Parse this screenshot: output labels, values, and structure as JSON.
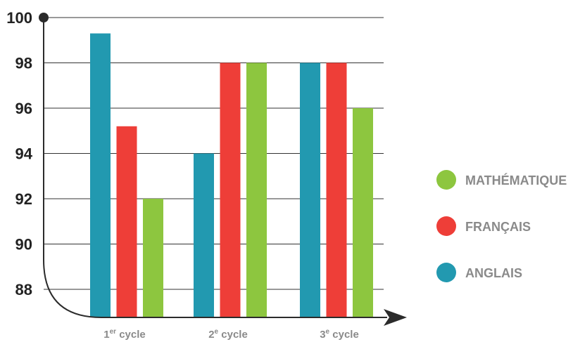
{
  "chart_data": {
    "type": "bar",
    "title": "",
    "xlabel": "",
    "ylabel": "",
    "ylim": [
      87,
      100
    ],
    "y_ticks": [
      88,
      90,
      92,
      94,
      96,
      98,
      100
    ],
    "grid": true,
    "legend_position": "right",
    "categories": [
      {
        "base": "1",
        "sup": "er",
        "rest": " cycle"
      },
      {
        "base": "2",
        "sup": "e",
        "rest": " cycle"
      },
      {
        "base": "3",
        "sup": "e",
        "rest": " cycle"
      }
    ],
    "series": [
      {
        "name": "ANGLAIS",
        "color": "#2299b0",
        "values": [
          99.3,
          94,
          98
        ]
      },
      {
        "name": "FRANÇAIS",
        "color": "#ee3e38",
        "values": [
          95.2,
          98,
          98
        ]
      },
      {
        "name": "MATHÉMATIQUE",
        "color": "#8dc63f",
        "values": [
          92,
          98,
          96
        ]
      }
    ],
    "legend_order": [
      "MATHÉMATIQUE",
      "FRANÇAIS",
      "ANGLAIS"
    ]
  }
}
